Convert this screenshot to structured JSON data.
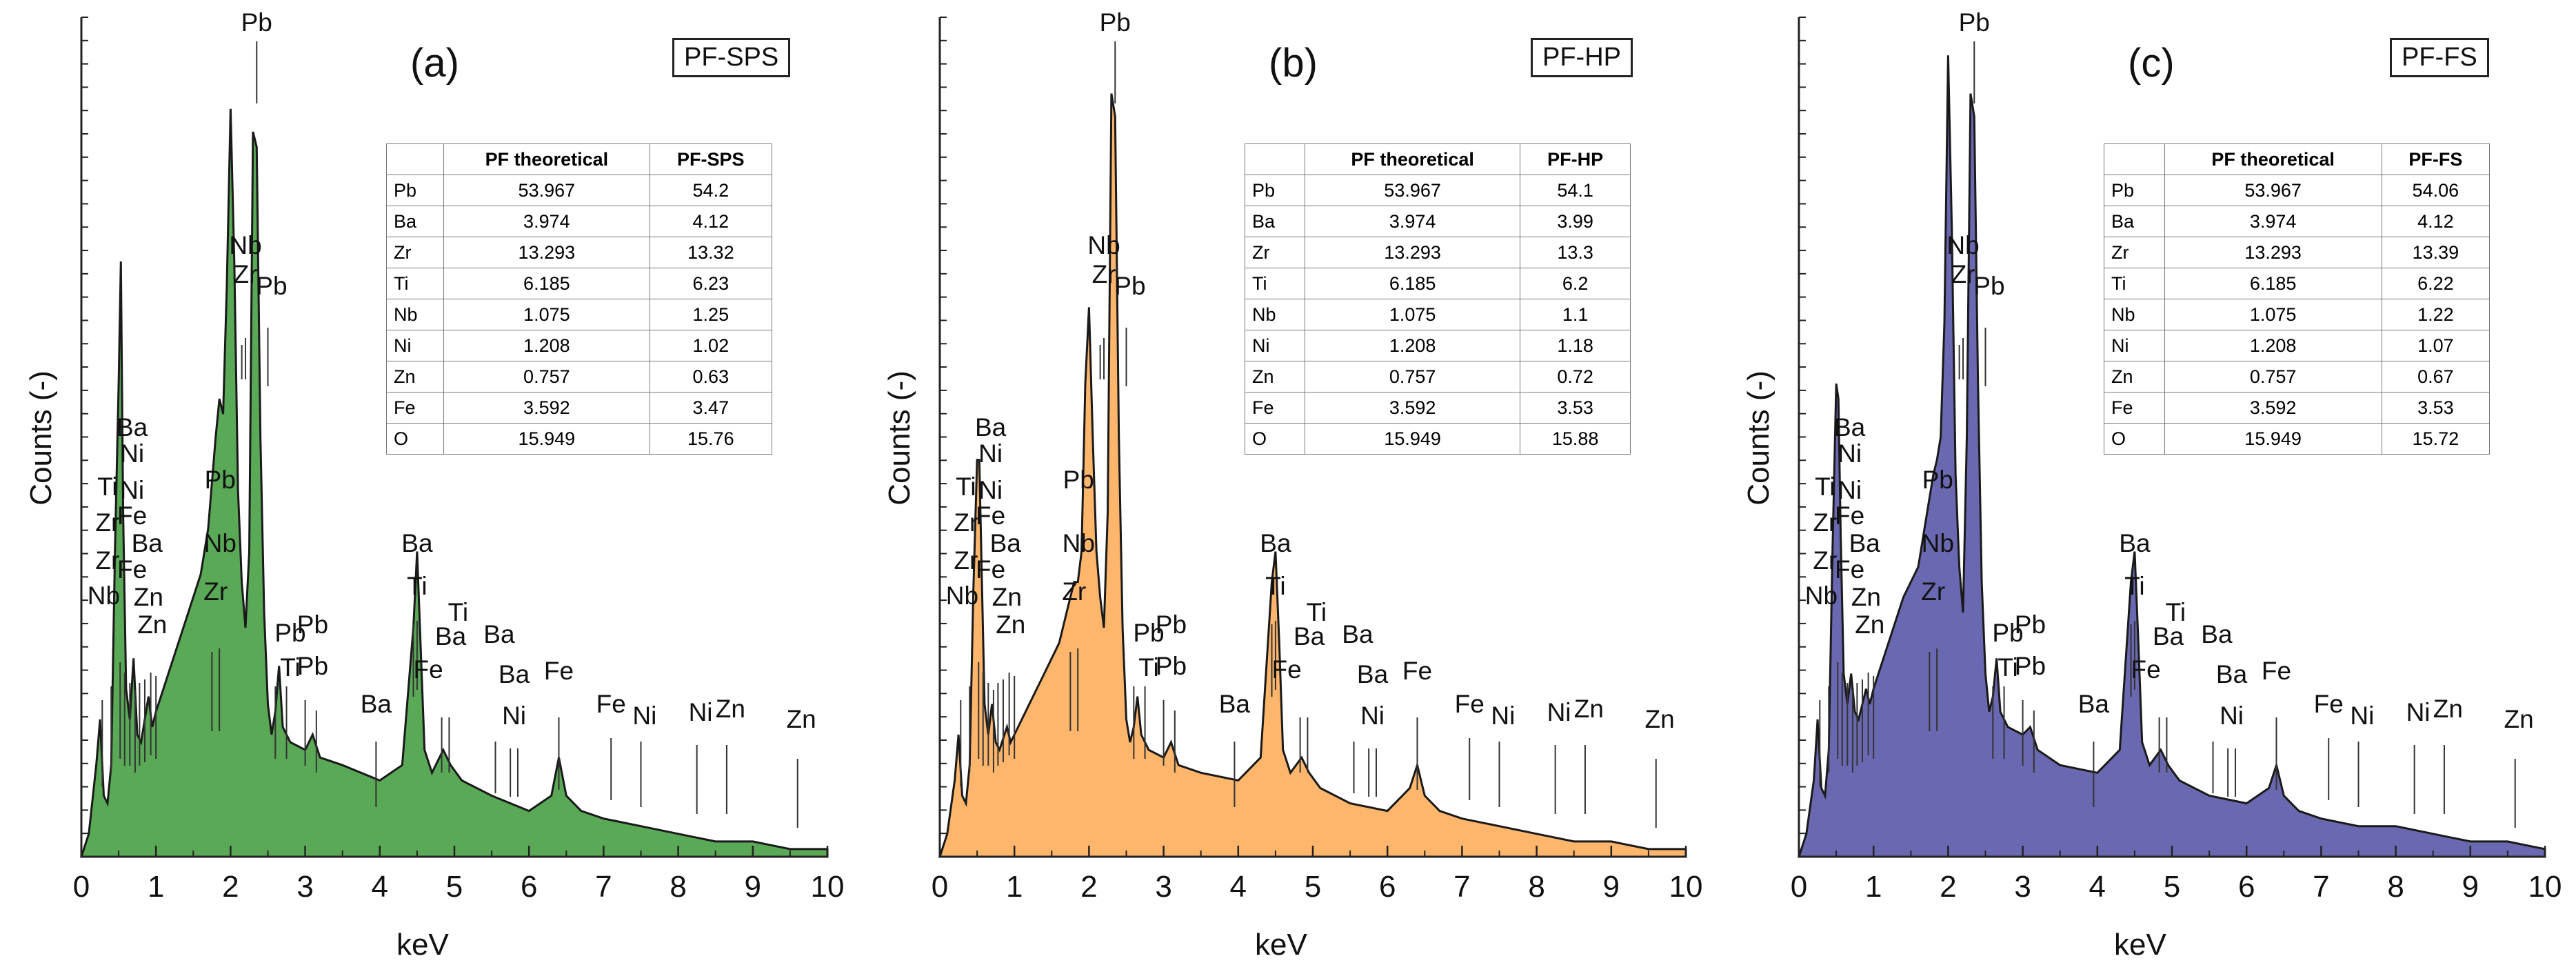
{
  "chart_data": [
    {
      "type": "line",
      "panel": "(a)",
      "sample": "PF-SPS",
      "color": "#5aa957",
      "xlabel": "keV",
      "ylabel": "Counts (-)",
      "xlim": [
        0,
        10
      ],
      "x_ticks": [
        "0",
        "1",
        "2",
        "3",
        "4",
        "5",
        "6",
        "7",
        "8",
        "9",
        "10"
      ],
      "spectrum": {
        "x": [
          0,
          0.1,
          0.2,
          0.25,
          0.3,
          0.35,
          0.4,
          0.45,
          0.5,
          0.53,
          0.56,
          0.6,
          0.65,
          0.7,
          0.75,
          0.8,
          0.9,
          0.95,
          1.0,
          1.1,
          1.2,
          1.4,
          1.6,
          1.7,
          1.8,
          1.85,
          1.9,
          1.95,
          2.0,
          2.05,
          2.1,
          2.15,
          2.2,
          2.25,
          2.3,
          2.35,
          2.4,
          2.45,
          2.5,
          2.55,
          2.6,
          2.65,
          2.7,
          2.8,
          3.0,
          3.1,
          3.2,
          3.5,
          4.0,
          4.3,
          4.45,
          4.5,
          4.55,
          4.6,
          4.7,
          4.85,
          4.95,
          5.1,
          5.5,
          6.0,
          6.3,
          6.4,
          6.5,
          6.7,
          7.0,
          7.5,
          8.0,
          8.5,
          9.0,
          9.5,
          10.0
        ],
        "y": [
          0,
          3,
          12,
          18,
          8,
          7,
          12,
          40,
          62,
          78,
          45,
          22,
          18,
          26,
          16,
          15,
          21,
          17,
          19,
          22,
          25,
          31,
          37,
          43,
          55,
          60,
          58,
          75,
          98,
          78,
          48,
          36,
          30,
          40,
          95,
          93,
          55,
          32,
          20,
          16,
          19,
          25,
          17,
          15,
          14,
          16,
          13,
          12,
          10,
          12,
          30,
          40,
          27,
          14,
          11,
          14,
          12,
          10,
          8,
          6,
          8,
          13,
          8,
          6,
          5,
          4,
          3,
          2,
          2,
          1,
          1
        ]
      },
      "peak_labels": [
        "Pb",
        "Nb",
        "Zr",
        "Pb",
        "Ba",
        "Ni",
        "Ti",
        "Ni",
        "Zr",
        "Fe",
        "Ba",
        "Zr",
        "Fe",
        "Zn",
        "Nb",
        "Zn",
        "Pb",
        "Nb",
        "Zr",
        "Pb",
        "Pb",
        "Ti",
        "Pb",
        "Ba",
        "Ti",
        "Ti",
        "Ba",
        "Fe",
        "Ba",
        "Ba",
        "Ba",
        "Ni",
        "Fe",
        "Fe",
        "Ni",
        "Ni",
        "Zn",
        "Zn"
      ],
      "table": {
        "headers": [
          "",
          "PF theoretical",
          "PF-SPS"
        ],
        "rows": [
          [
            "Pb",
            "53.967",
            "54.2"
          ],
          [
            "Ba",
            "3.974",
            "4.12"
          ],
          [
            "Zr",
            "13.293",
            "13.32"
          ],
          [
            "Ti",
            "6.185",
            "6.23"
          ],
          [
            "Nb",
            "1.075",
            "1.25"
          ],
          [
            "Ni",
            "1.208",
            "1.02"
          ],
          [
            "Zn",
            "0.757",
            "0.63"
          ],
          [
            "Fe",
            "3.592",
            "3.47"
          ],
          [
            "O",
            "15.949",
            "15.76"
          ]
        ]
      }
    },
    {
      "type": "line",
      "panel": "(b)",
      "sample": "PF-HP",
      "color": "#fdb66c",
      "xlabel": "keV",
      "ylabel": "Counts (-)",
      "xlim": [
        0,
        10
      ],
      "x_ticks": [
        "0",
        "1",
        "2",
        "3",
        "4",
        "5",
        "6",
        "7",
        "8",
        "9",
        "10"
      ],
      "spectrum": {
        "x": [
          0,
          0.1,
          0.2,
          0.25,
          0.3,
          0.35,
          0.4,
          0.45,
          0.5,
          0.53,
          0.56,
          0.6,
          0.65,
          0.7,
          0.75,
          0.8,
          0.9,
          0.95,
          1.0,
          1.1,
          1.2,
          1.4,
          1.6,
          1.7,
          1.8,
          1.85,
          1.9,
          1.95,
          2.0,
          2.05,
          2.1,
          2.15,
          2.2,
          2.25,
          2.3,
          2.35,
          2.4,
          2.45,
          2.5,
          2.55,
          2.6,
          2.65,
          2.7,
          2.8,
          3.0,
          3.1,
          3.2,
          3.5,
          4.0,
          4.3,
          4.45,
          4.5,
          4.55,
          4.6,
          4.7,
          4.85,
          4.95,
          5.1,
          5.5,
          6.0,
          6.3,
          6.4,
          6.5,
          6.7,
          7.0,
          7.5,
          8.0,
          8.5,
          9.0,
          9.5,
          10.0
        ],
        "y": [
          0,
          3,
          10,
          16,
          8,
          7,
          12,
          35,
          52,
          52,
          38,
          20,
          16,
          20,
          15,
          14,
          17,
          15,
          16,
          18,
          20,
          24,
          28,
          32,
          36,
          36,
          40,
          62,
          72,
          55,
          40,
          34,
          30,
          45,
          100,
          97,
          55,
          30,
          18,
          15,
          17,
          21,
          16,
          14,
          13,
          15,
          12,
          11,
          10,
          13,
          36,
          40,
          28,
          14,
          11,
          13,
          11,
          9,
          7,
          6,
          9,
          12,
          8,
          6,
          5,
          4,
          3,
          2,
          2,
          1,
          1
        ]
      },
      "peak_labels": [
        "Pb",
        "Nb",
        "Zr",
        "Pb",
        "Ba",
        "Ni",
        "Ti",
        "Ni",
        "Zr",
        "Fe",
        "Ba",
        "Zr",
        "Fe",
        "Zn",
        "Nb",
        "Zn",
        "Pb",
        "Nb",
        "Zr",
        "Pb",
        "Pb",
        "Ti",
        "Pb",
        "Ba",
        "Ti",
        "Ti",
        "Ba",
        "Fe",
        "Ba",
        "Ba",
        "Ba",
        "Ni",
        "Fe",
        "Fe",
        "Ni",
        "Ni",
        "Zn",
        "Zn"
      ],
      "table": {
        "headers": [
          "",
          "PF theoretical",
          "PF-HP"
        ],
        "rows": [
          [
            "Pb",
            "53.967",
            "54.1"
          ],
          [
            "Ba",
            "3.974",
            "3.99"
          ],
          [
            "Zr",
            "13.293",
            "13.3"
          ],
          [
            "Ti",
            "6.185",
            "6.2"
          ],
          [
            "Nb",
            "1.075",
            "1.1"
          ],
          [
            "Ni",
            "1.208",
            "1.18"
          ],
          [
            "Zn",
            "0.757",
            "0.72"
          ],
          [
            "Fe",
            "3.592",
            "3.53"
          ],
          [
            "O",
            "15.949",
            "15.88"
          ]
        ]
      }
    },
    {
      "type": "line",
      "panel": "(c)",
      "sample": "PF-FS",
      "color": "#6a68b0",
      "xlabel": "keV",
      "ylabel": "Counts (-)",
      "xlim": [
        0,
        10
      ],
      "x_ticks": [
        "0",
        "1",
        "2",
        "3",
        "4",
        "5",
        "6",
        "7",
        "8",
        "9",
        "10"
      ],
      "spectrum": {
        "x": [
          0,
          0.1,
          0.2,
          0.25,
          0.3,
          0.35,
          0.4,
          0.45,
          0.5,
          0.53,
          0.56,
          0.6,
          0.65,
          0.7,
          0.75,
          0.8,
          0.9,
          0.95,
          1.0,
          1.1,
          1.2,
          1.4,
          1.6,
          1.7,
          1.8,
          1.85,
          1.9,
          1.95,
          2.0,
          2.05,
          2.1,
          2.15,
          2.2,
          2.25,
          2.3,
          2.35,
          2.4,
          2.45,
          2.5,
          2.55,
          2.6,
          2.65,
          2.7,
          2.8,
          3.0,
          3.1,
          3.2,
          3.5,
          4.0,
          4.3,
          4.45,
          4.5,
          4.55,
          4.6,
          4.7,
          4.85,
          4.95,
          5.1,
          5.5,
          6.0,
          6.3,
          6.4,
          6.5,
          6.7,
          7.0,
          7.5,
          8.0,
          8.5,
          9.0,
          9.5,
          10.0
        ],
        "y": [
          0,
          3,
          10,
          18,
          9,
          8,
          14,
          40,
          62,
          60,
          42,
          24,
          20,
          24,
          19,
          18,
          22,
          20,
          22,
          25,
          28,
          34,
          38,
          44,
          50,
          52,
          55,
          70,
          105,
          82,
          50,
          38,
          32,
          55,
          100,
          97,
          62,
          36,
          24,
          19,
          21,
          26,
          19,
          17,
          16,
          17,
          14,
          12,
          11,
          14,
          36,
          40,
          28,
          15,
          12,
          14,
          12,
          10,
          8,
          7,
          9,
          12,
          8,
          6,
          5,
          4,
          4,
          3,
          2,
          2,
          1
        ]
      },
      "peak_labels": [
        "Pb",
        "Nb",
        "Zr",
        "Pb",
        "Ba",
        "Ni",
        "Ti",
        "Ni",
        "Zr",
        "Fe",
        "Ba",
        "Zr",
        "Fe",
        "Zn",
        "Nb",
        "Zn",
        "Pb",
        "Nb",
        "Zr",
        "Pb",
        "Pb",
        "Ti",
        "Pb",
        "Ba",
        "Ti",
        "Ti",
        "Ba",
        "Fe",
        "Ba",
        "Ba",
        "Ba",
        "Ni",
        "Fe",
        "Fe",
        "Ni",
        "Ni",
        "Zn",
        "Zn"
      ],
      "table": {
        "headers": [
          "",
          "PF theoretical",
          "PF-FS"
        ],
        "rows": [
          [
            "Pb",
            "53.967",
            "54.06"
          ],
          [
            "Ba",
            "3.974",
            "4.12"
          ],
          [
            "Zr",
            "13.293",
            "13.39"
          ],
          [
            "Ti",
            "6.185",
            "6.22"
          ],
          [
            "Nb",
            "1.075",
            "1.22"
          ],
          [
            "Ni",
            "1.208",
            "1.07"
          ],
          [
            "Zn",
            "0.757",
            "0.67"
          ],
          [
            "Fe",
            "3.592",
            "3.53"
          ],
          [
            "O",
            "15.949",
            "15.72"
          ]
        ]
      }
    }
  ]
}
